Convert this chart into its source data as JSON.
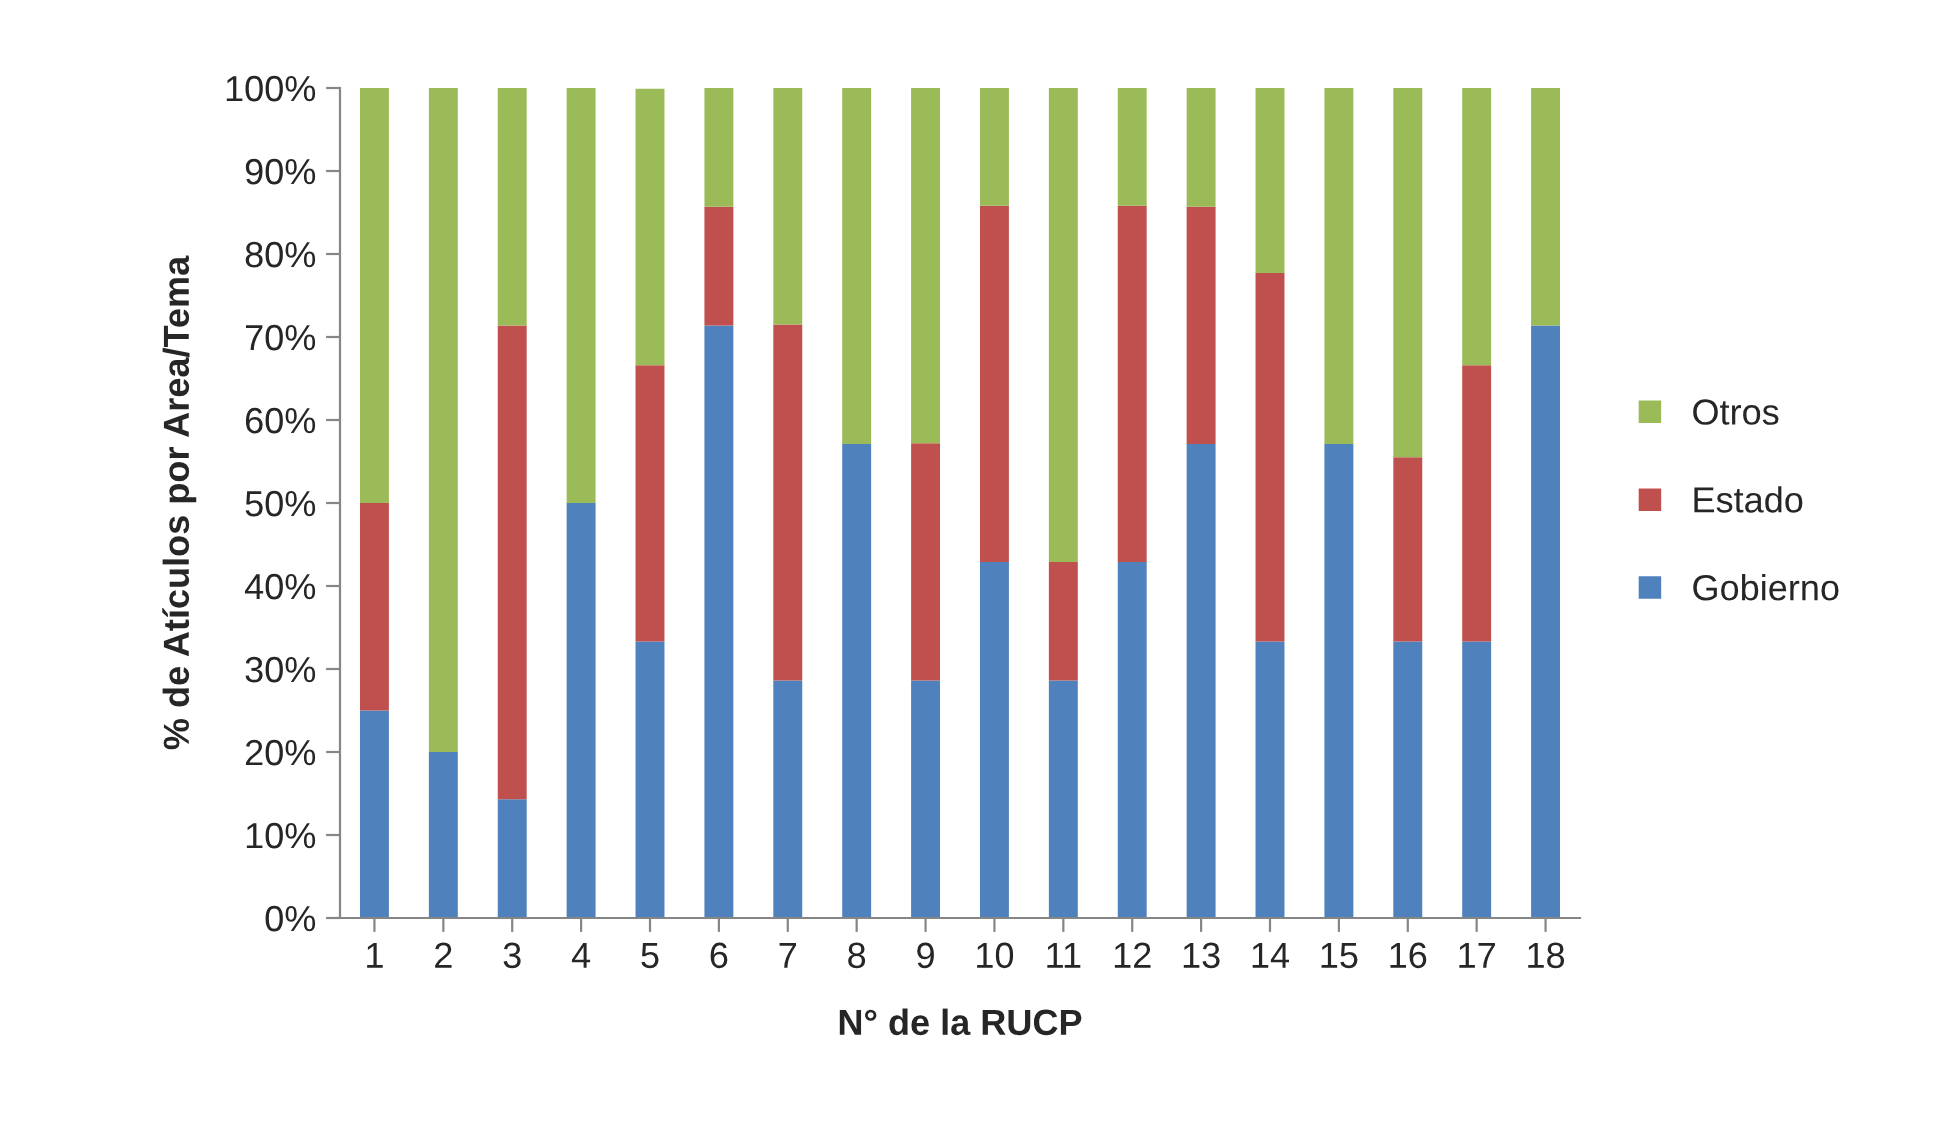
{
  "chart_data": {
    "type": "bar",
    "stacked": true,
    "xlabel": "N° de la RUCP",
    "ylabel": "% de Atículos por Area/Tema",
    "categories": [
      "1",
      "2",
      "3",
      "4",
      "5",
      "6",
      "7",
      "8",
      "9",
      "10",
      "11",
      "12",
      "13",
      "14",
      "15",
      "16",
      "17",
      "18"
    ],
    "series": [
      {
        "name": "Gobierno",
        "color": "#4f81bd",
        "values": [
          25,
          20,
          14.3,
          50,
          33.3,
          71.4,
          28.6,
          57.1,
          28.6,
          42.9,
          28.6,
          42.9,
          57.1,
          33.3,
          57.1,
          33.3,
          33.3,
          71.4
        ]
      },
      {
        "name": "Estado",
        "color": "#c0504d",
        "values": [
          25,
          0,
          57.1,
          0,
          33.3,
          14.3,
          42.9,
          0,
          28.6,
          42.9,
          14.3,
          42.9,
          28.6,
          44.4,
          0,
          22.2,
          33.3,
          0
        ]
      },
      {
        "name": "Otros",
        "color": "#9bbb59",
        "values": [
          50,
          80,
          28.6,
          50,
          33.3,
          14.3,
          28.5,
          42.9,
          42.8,
          14.2,
          57.1,
          14.2,
          14.3,
          22.3,
          42.9,
          44.5,
          33.4,
          28.6
        ]
      }
    ],
    "ylim": [
      0,
      100
    ],
    "yticks": [
      {
        "value": 0,
        "label": "0%"
      },
      {
        "value": 10,
        "label": "10%"
      },
      {
        "value": 20,
        "label": "20%"
      },
      {
        "value": 30,
        "label": "30%"
      },
      {
        "value": 40,
        "label": "40%"
      },
      {
        "value": 50,
        "label": "50%"
      },
      {
        "value": 60,
        "label": "60%"
      },
      {
        "value": 70,
        "label": "70%"
      },
      {
        "value": 80,
        "label": "80%"
      },
      {
        "value": 90,
        "label": "90%"
      },
      {
        "value": 100,
        "label": "100%"
      }
    ],
    "legend": "right",
    "grid": false
  }
}
